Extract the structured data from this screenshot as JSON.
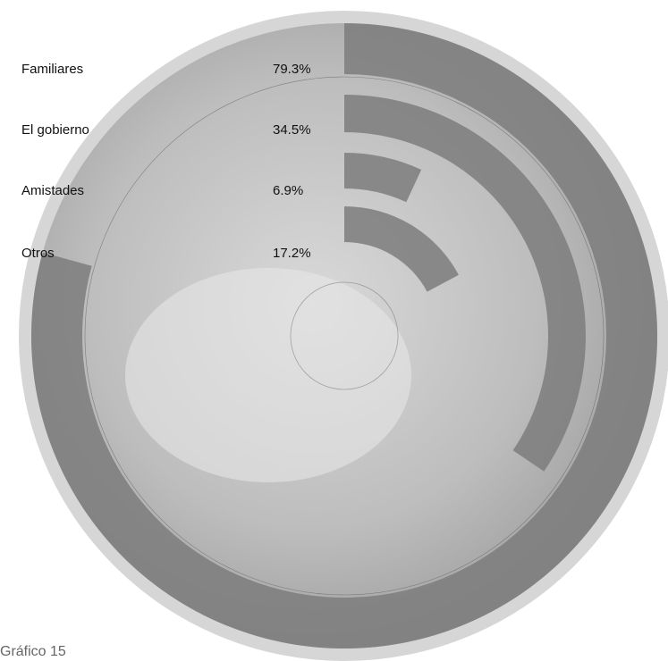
{
  "chart_data": {
    "type": "radial_bar",
    "categories": [
      "Familiares",
      "El gobierno",
      "Amistades",
      "Otros"
    ],
    "values": [
      79.3,
      34.5,
      6.9,
      17.2
    ],
    "value_labels": [
      "79.3%",
      "34.5%",
      "6.9%",
      "17.2%"
    ],
    "ylim": [
      0,
      100
    ],
    "color": "#7d7d7d",
    "caption": "Gráfico 15"
  }
}
